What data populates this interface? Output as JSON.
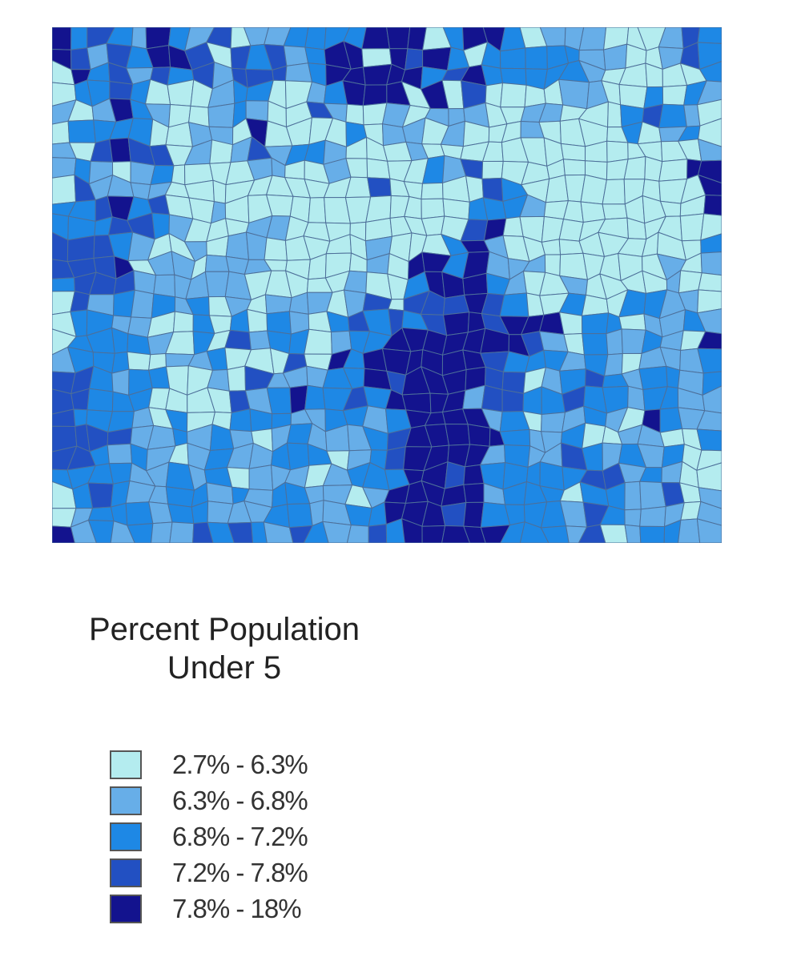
{
  "legend": {
    "title_line1": "Percent Population",
    "title_line2": "Under 5",
    "classes": [
      {
        "label": "2.7% - 6.3%",
        "color": "#b4ecef"
      },
      {
        "label": "6.3% - 6.8%",
        "color": "#67aee8"
      },
      {
        "label": "6.8% - 7.2%",
        "color": "#1e88e5"
      },
      {
        "label": "7.2% - 7.8%",
        "color": "#2250c2"
      },
      {
        "label": "7.8% - 18%",
        "color": "#13138e"
      }
    ]
  },
  "map": {
    "icon": "county-choropleth-map",
    "county_class_grid": [
      "4232142130112222444024420111000132",
      "4313244303231244043420222221100132",
      "0423132313331244444234222221000002",
      "0223200012200124440403000011002021",
      "1014210012100310010111001100023210",
      "0222200110400002011010001000020120",
      "1034330101312210001000000000000001",
      "1210120000110010000213000000000044",
      "0311110000000000300000320000000004",
      "2234230010000000000002221000000004",
      "2223321000110000000003400000000000",
      "3332100101100000100024100000000002",
      "3334011011100000104424111000000101",
      "2333111111000001002444210010000100",
      "0312121201011101303334320020022110",
      "0221100202021023232344344402201121",
      "0222210203122012244444443102112104",
      "1222001120003042444444322212101112",
      "3321220010311122434444330123212212",
      "3322200003124223244441332232212211",
      "3222102002221122124444120112104211",
      "3333112121012111234444421120011002",
      "3321210121122201234444121132121200",
      "2222112120111012224434222223312100",
      "0232112212122110144444122202211301",
      "0122212211122112244434222213211101",
      "4121211323213211324444422213012211"
    ]
  }
}
